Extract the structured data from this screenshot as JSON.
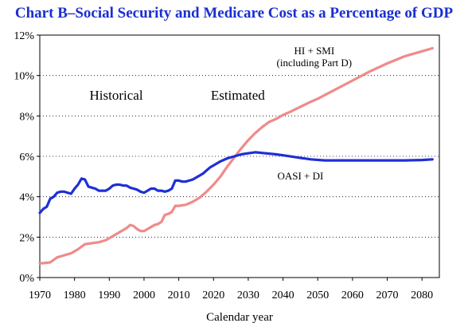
{
  "chart_data": {
    "type": "line",
    "title": "Chart B–Social Security and Medicare Cost as a Percentage of GDP",
    "xlabel": "Calendar year",
    "ylabel": "",
    "xlim": [
      1970,
      2085
    ],
    "ylim": [
      0,
      12
    ],
    "x_ticks": [
      1970,
      1980,
      1990,
      2000,
      2010,
      2020,
      2030,
      2040,
      2050,
      2060,
      2070,
      2080
    ],
    "y_ticks": [
      "0%",
      "2%",
      "4%",
      "6%",
      "8%",
      "10%",
      "12%"
    ],
    "annotations": [
      "Historical",
      "Estimated"
    ],
    "series": [
      {
        "name": "OASI + DI",
        "color": "#1f2fd6",
        "points": [
          [
            1970,
            3.2
          ],
          [
            1971,
            3.4
          ],
          [
            1972,
            3.5
          ],
          [
            1973,
            3.9
          ],
          [
            1974,
            4.0
          ],
          [
            1975,
            4.2
          ],
          [
            1976,
            4.25
          ],
          [
            1977,
            4.25
          ],
          [
            1978,
            4.2
          ],
          [
            1979,
            4.15
          ],
          [
            1980,
            4.4
          ],
          [
            1981,
            4.6
          ],
          [
            1982,
            4.9
          ],
          [
            1983,
            4.85
          ],
          [
            1984,
            4.5
          ],
          [
            1985,
            4.45
          ],
          [
            1986,
            4.4
          ],
          [
            1987,
            4.3
          ],
          [
            1988,
            4.3
          ],
          [
            1989,
            4.3
          ],
          [
            1990,
            4.4
          ],
          [
            1991,
            4.55
          ],
          [
            1992,
            4.6
          ],
          [
            1993,
            4.6
          ],
          [
            1994,
            4.55
          ],
          [
            1995,
            4.55
          ],
          [
            1996,
            4.45
          ],
          [
            1997,
            4.4
          ],
          [
            1998,
            4.35
          ],
          [
            1999,
            4.25
          ],
          [
            2000,
            4.2
          ],
          [
            2001,
            4.3
          ],
          [
            2002,
            4.4
          ],
          [
            2003,
            4.4
          ],
          [
            2004,
            4.3
          ],
          [
            2005,
            4.3
          ],
          [
            2006,
            4.25
          ],
          [
            2007,
            4.3
          ],
          [
            2008,
            4.4
          ],
          [
            2009,
            4.8
          ],
          [
            2010,
            4.8
          ],
          [
            2011,
            4.75
          ],
          [
            2012,
            4.75
          ],
          [
            2013,
            4.8
          ],
          [
            2014,
            4.85
          ],
          [
            2015,
            4.95
          ],
          [
            2016,
            5.05
          ],
          [
            2017,
            5.15
          ],
          [
            2018,
            5.3
          ],
          [
            2019,
            5.45
          ],
          [
            2020,
            5.55
          ],
          [
            2022,
            5.75
          ],
          [
            2024,
            5.9
          ],
          [
            2026,
            6.0
          ],
          [
            2028,
            6.1
          ],
          [
            2030,
            6.15
          ],
          [
            2032,
            6.2
          ],
          [
            2035,
            6.15
          ],
          [
            2038,
            6.1
          ],
          [
            2040,
            6.05
          ],
          [
            2044,
            5.95
          ],
          [
            2048,
            5.85
          ],
          [
            2052,
            5.8
          ],
          [
            2056,
            5.8
          ],
          [
            2060,
            5.8
          ],
          [
            2065,
            5.8
          ],
          [
            2070,
            5.8
          ],
          [
            2075,
            5.8
          ],
          [
            2080,
            5.82
          ],
          [
            2083,
            5.85
          ]
        ]
      },
      {
        "name": "HI + SMI\n(including Part D)",
        "color": "#f08a8a",
        "points": [
          [
            1970,
            0.7
          ],
          [
            1973,
            0.75
          ],
          [
            1975,
            1.0
          ],
          [
            1977,
            1.1
          ],
          [
            1979,
            1.2
          ],
          [
            1981,
            1.4
          ],
          [
            1983,
            1.65
          ],
          [
            1985,
            1.7
          ],
          [
            1987,
            1.75
          ],
          [
            1989,
            1.85
          ],
          [
            1991,
            2.05
          ],
          [
            1993,
            2.25
          ],
          [
            1995,
            2.45
          ],
          [
            1996,
            2.6
          ],
          [
            1997,
            2.55
          ],
          [
            1998,
            2.4
          ],
          [
            1999,
            2.3
          ],
          [
            2000,
            2.3
          ],
          [
            2001,
            2.4
          ],
          [
            2002,
            2.5
          ],
          [
            2003,
            2.6
          ],
          [
            2004,
            2.65
          ],
          [
            2005,
            2.75
          ],
          [
            2006,
            3.1
          ],
          [
            2007,
            3.15
          ],
          [
            2008,
            3.25
          ],
          [
            2009,
            3.55
          ],
          [
            2010,
            3.55
          ],
          [
            2012,
            3.6
          ],
          [
            2014,
            3.75
          ],
          [
            2016,
            3.95
          ],
          [
            2018,
            4.25
          ],
          [
            2020,
            4.6
          ],
          [
            2022,
            5.0
          ],
          [
            2024,
            5.5
          ],
          [
            2026,
            5.95
          ],
          [
            2028,
            6.4
          ],
          [
            2030,
            6.8
          ],
          [
            2032,
            7.15
          ],
          [
            2034,
            7.45
          ],
          [
            2036,
            7.7
          ],
          [
            2038,
            7.85
          ],
          [
            2040,
            8.05
          ],
          [
            2042,
            8.2
          ],
          [
            2045,
            8.45
          ],
          [
            2048,
            8.7
          ],
          [
            2050,
            8.85
          ],
          [
            2055,
            9.3
          ],
          [
            2060,
            9.75
          ],
          [
            2065,
            10.2
          ],
          [
            2070,
            10.6
          ],
          [
            2075,
            10.95
          ],
          [
            2080,
            11.2
          ],
          [
            2083,
            11.35
          ]
        ]
      }
    ]
  }
}
